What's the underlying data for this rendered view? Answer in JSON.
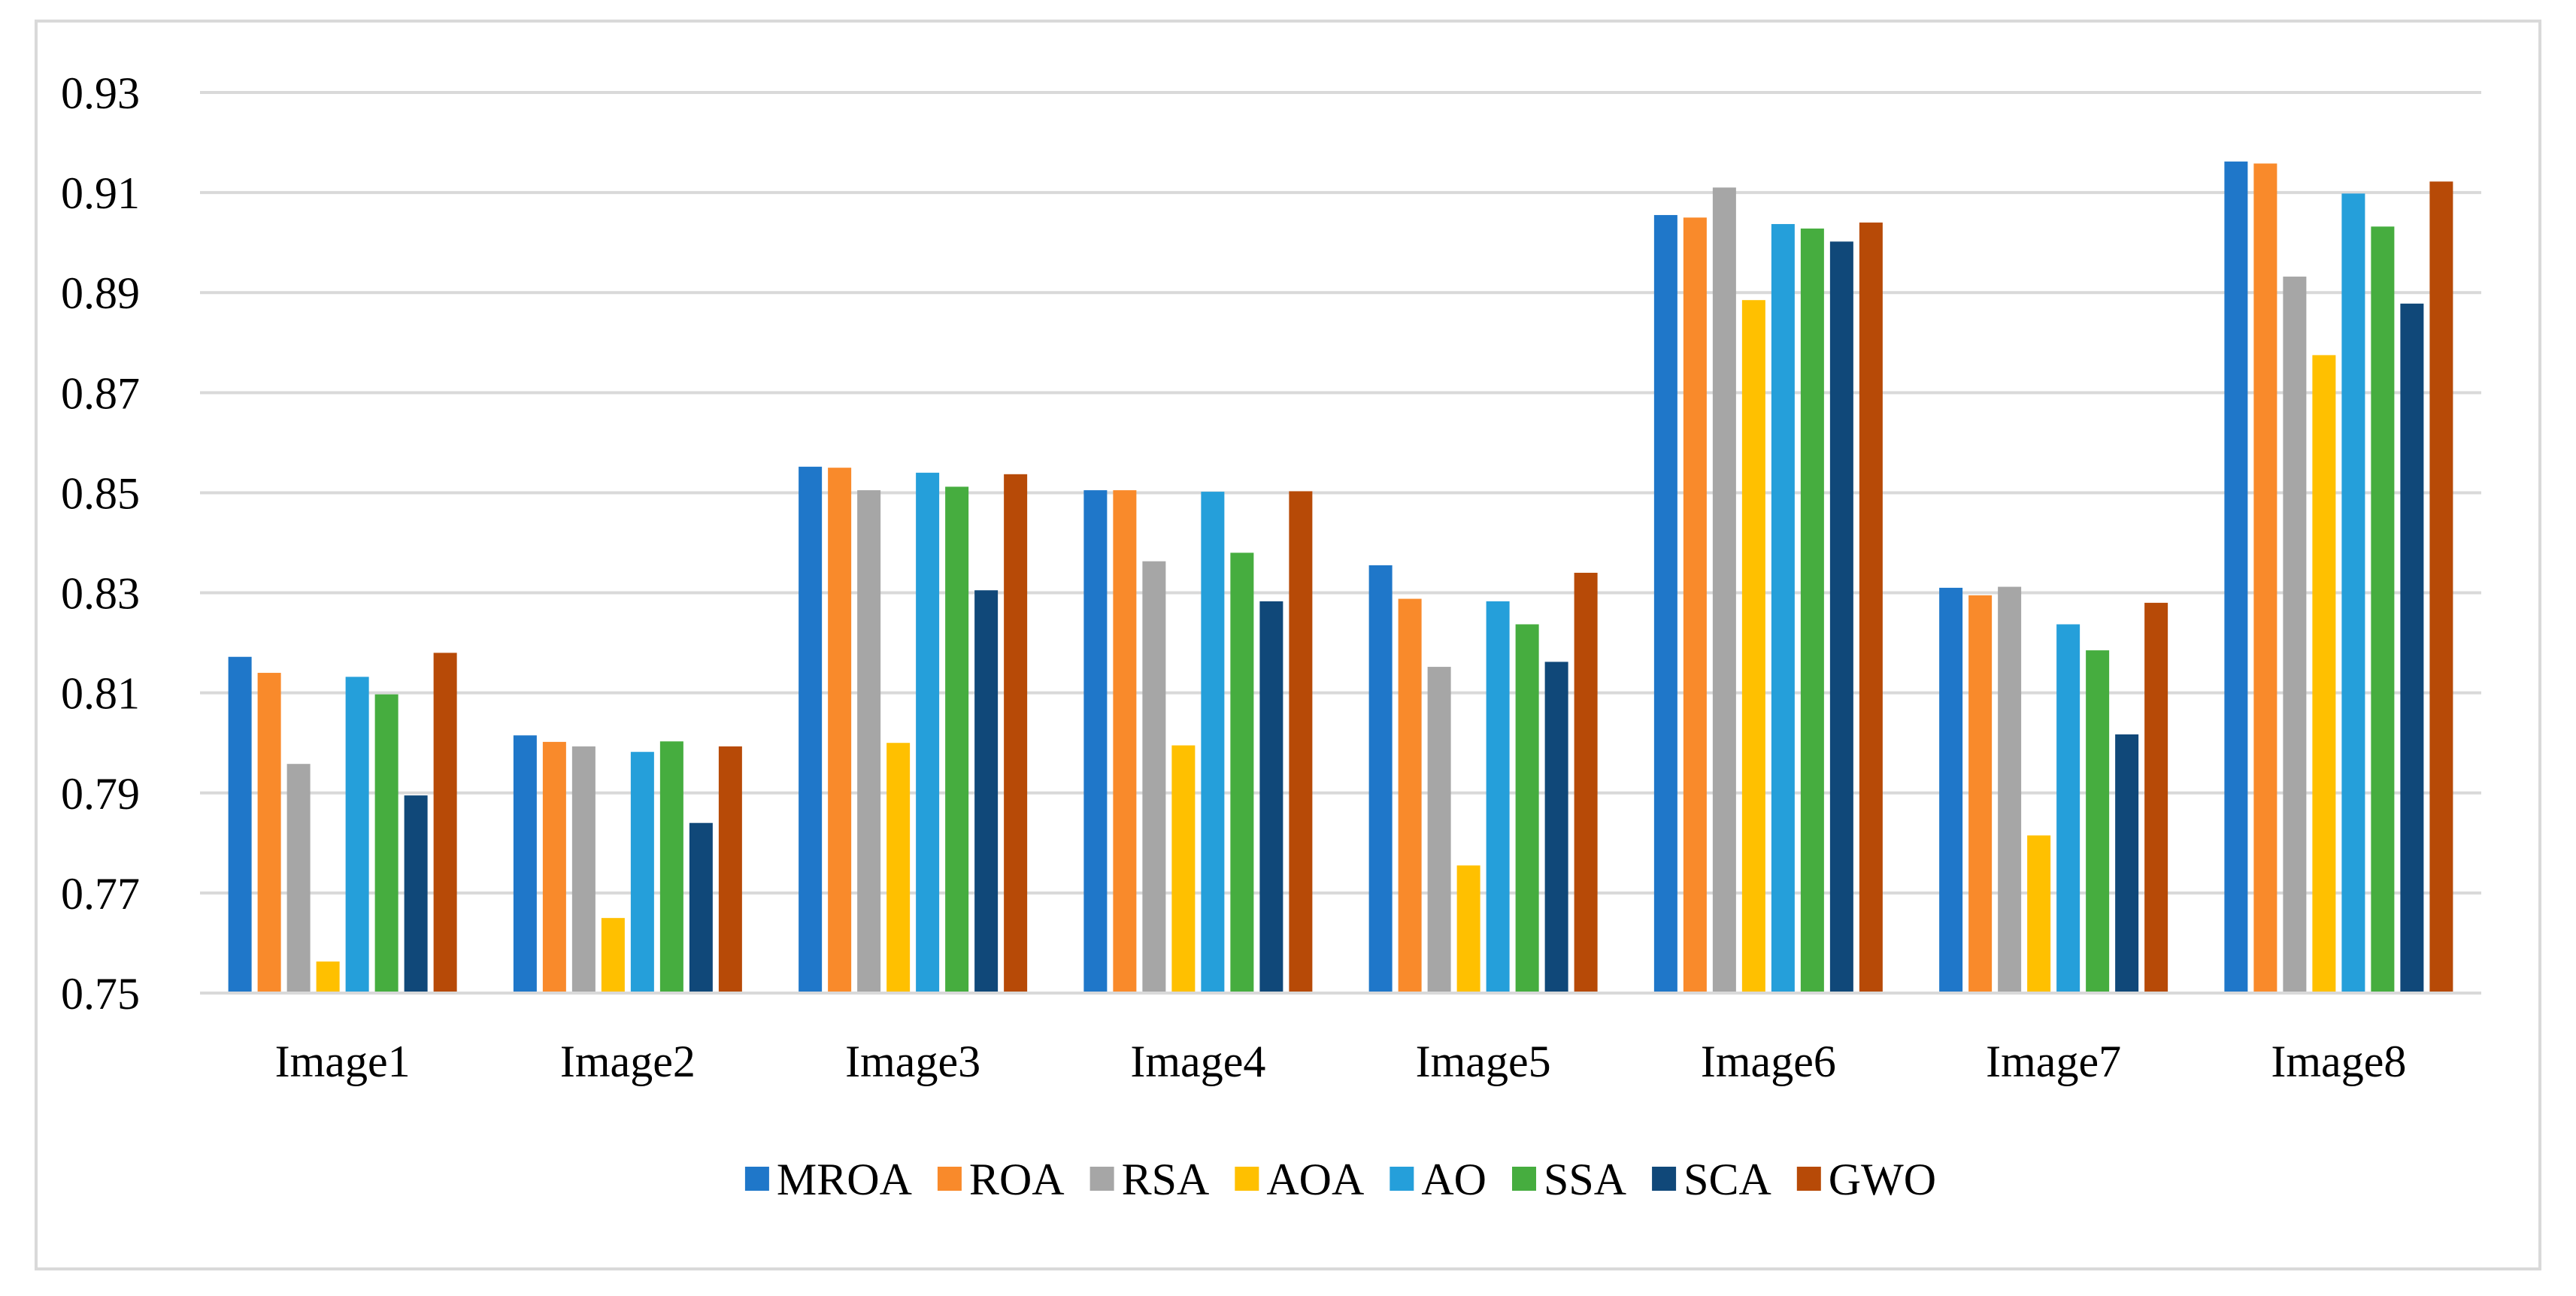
{
  "chart_data": {
    "type": "bar",
    "title": "",
    "xlabel": "",
    "ylabel": "",
    "ylim": [
      0.75,
      0.93
    ],
    "yticks": [
      "0.75",
      "0.77",
      "0.79",
      "0.81",
      "0.83",
      "0.85",
      "0.87",
      "0.89",
      "0.91",
      "0.93"
    ],
    "grid": true,
    "legend_position": "bottom",
    "categories": [
      "Image1",
      "Image2",
      "Image3",
      "Image4",
      "Image5",
      "Image6",
      "Image7",
      "Image8"
    ],
    "series": [
      {
        "name": "MROA",
        "color": "#1F77C9",
        "values": [
          0.8172,
          0.8015,
          0.8552,
          0.8505,
          0.8355,
          0.9055,
          0.831,
          0.9162
        ]
      },
      {
        "name": "ROA",
        "color": "#F98A2B",
        "values": [
          0.814,
          0.8002,
          0.855,
          0.8505,
          0.8288,
          0.905,
          0.8295,
          0.9158
        ]
      },
      {
        "name": "RSA",
        "color": "#A6A6A6",
        "values": [
          0.7958,
          0.7993,
          0.8505,
          0.8363,
          0.8152,
          0.911,
          0.8312,
          0.8932
        ]
      },
      {
        "name": "AOA",
        "color": "#FFC000",
        "values": [
          0.7563,
          0.765,
          0.8,
          0.7995,
          0.7755,
          0.8885,
          0.7815,
          0.8775
        ]
      },
      {
        "name": "AO",
        "color": "#259FDA",
        "values": [
          0.8132,
          0.7982,
          0.854,
          0.8502,
          0.8283,
          0.9037,
          0.8237,
          0.9098
        ]
      },
      {
        "name": "SSA",
        "color": "#46AD3F",
        "values": [
          0.8097,
          0.8003,
          0.8512,
          0.838,
          0.8237,
          0.9028,
          0.8185,
          0.9032
        ]
      },
      {
        "name": "SCA",
        "color": "#104879",
        "values": [
          0.7895,
          0.784,
          0.8305,
          0.8283,
          0.8162,
          0.9002,
          0.8017,
          0.8878
        ]
      },
      {
        "name": "GWO",
        "color": "#B74A07",
        "values": [
          0.818,
          0.7993,
          0.8537,
          0.8503,
          0.834,
          0.904,
          0.828,
          0.9122
        ]
      }
    ],
    "style": {
      "grid_color": "#d9d9d9",
      "axis_color": "#d9d9d9",
      "frame_color": "#d9d9d9"
    }
  }
}
